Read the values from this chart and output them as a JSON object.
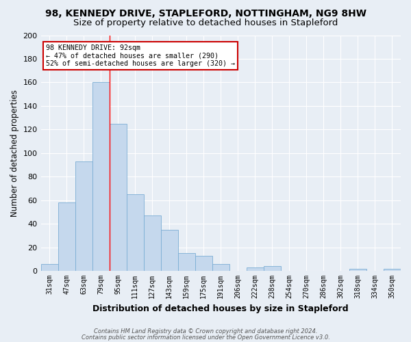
{
  "title_line1": "98, KENNEDY DRIVE, STAPLEFORD, NOTTINGHAM, NG9 8HW",
  "title_line2": "Size of property relative to detached houses in Stapleford",
  "xlabel": "Distribution of detached houses by size in Stapleford",
  "ylabel": "Number of detached properties",
  "categories": [
    "31sqm",
    "47sqm",
    "63sqm",
    "79sqm",
    "95sqm",
    "111sqm",
    "127sqm",
    "143sqm",
    "159sqm",
    "175sqm",
    "191sqm",
    "206sqm",
    "222sqm",
    "238sqm",
    "254sqm",
    "270sqm",
    "286sqm",
    "302sqm",
    "318sqm",
    "334sqm",
    "350sqm"
  ],
  "values": [
    6,
    58,
    93,
    160,
    125,
    65,
    47,
    35,
    15,
    13,
    6,
    0,
    3,
    4,
    0,
    0,
    0,
    0,
    2,
    0,
    2
  ],
  "bar_color": "#c5d8ed",
  "bar_edge_color": "#7aadd4",
  "ylim": [
    0,
    200
  ],
  "annotation_title": "98 KENNEDY DRIVE: 92sqm",
  "annotation_line1": "← 47% of detached houses are smaller (290)",
  "annotation_line2": "52% of semi-detached houses are larger (320) →",
  "annotation_box_color": "#ffffff",
  "annotation_border_color": "#cc0000",
  "footer_line1": "Contains HM Land Registry data © Crown copyright and database right 2024.",
  "footer_line2": "Contains public sector information licensed under the Open Government Licence v3.0.",
  "bg_color": "#e8eef5",
  "grid_color": "#ffffff",
  "redline_index": 3.5
}
